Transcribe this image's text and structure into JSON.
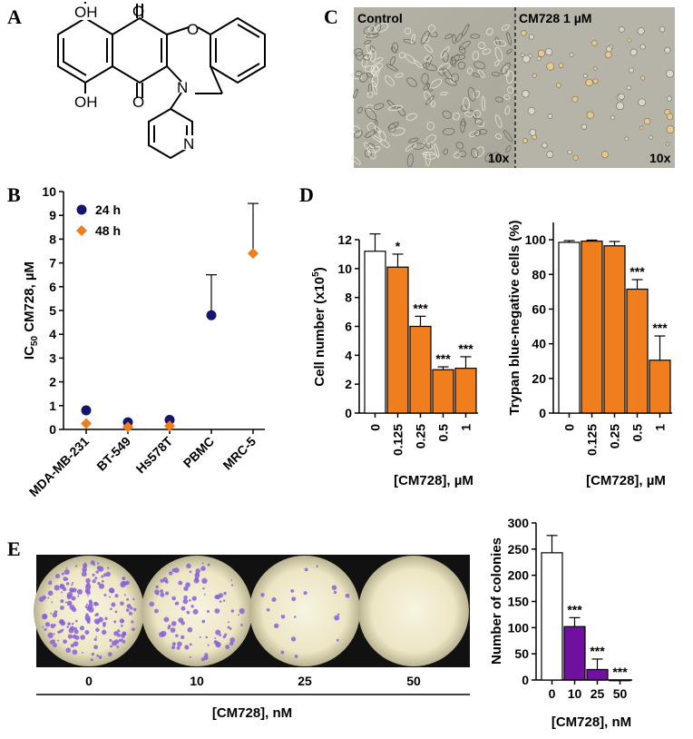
{
  "panels": {
    "A": "A",
    "B": "B",
    "C": "C",
    "D": "D",
    "E": "E"
  },
  "structure": {
    "atoms": {
      "oh_top": "OH",
      "oh_bottom": "OH",
      "o_top": "O",
      "o_bottom": "O",
      "o_ring": "O",
      "n_ring": "N",
      "n_pyridine": "N"
    }
  },
  "micrographs": {
    "left_label": "Control",
    "right_label": "CM728 1 µM",
    "left_mag": "10x",
    "right_mag": "10x"
  },
  "colony_images": {
    "doses": [
      "0",
      "10",
      "25",
      "50"
    ],
    "axis_label": "[CM728], nM"
  },
  "colors": {
    "navy": "#15166b",
    "orange": "#f07d1e",
    "purple": "#7010a0",
    "white": "#ffffff"
  },
  "chart_data": [
    {
      "id": "B",
      "type": "scatter",
      "categories": [
        "MDA-MB-231",
        "BT-549",
        "Hs578T",
        "PBMC",
        "MRC-5"
      ],
      "series": [
        {
          "name": "24 h",
          "marker": "circle",
          "color": "#15166b",
          "values": [
            0.8,
            0.3,
            0.4,
            4.8,
            null
          ],
          "errors": [
            0,
            0,
            0,
            1.7,
            null
          ]
        },
        {
          "name": "48 h",
          "marker": "diamond",
          "color": "#f07d1e",
          "values": [
            0.25,
            0.1,
            0.15,
            null,
            7.4
          ],
          "errors": [
            0,
            0,
            0,
            null,
            2.1
          ]
        }
      ],
      "ylabel_main": "IC",
      "ylabel_sub": "50",
      "ylabel_rest": " CM728, µM",
      "ylim": [
        0,
        10
      ],
      "yticks": [
        "0",
        "1",
        "2",
        "3",
        "4",
        "5",
        "6",
        "7",
        "8",
        "9",
        "10"
      ],
      "legend": "top-left"
    },
    {
      "id": "D1",
      "type": "bar",
      "categories": [
        "0",
        "0.125",
        "0.25",
        "0.5",
        "1"
      ],
      "values": [
        11.2,
        10.1,
        6.0,
        3.0,
        3.1
      ],
      "errors": [
        1.2,
        0.9,
        0.7,
        0.2,
        0.8
      ],
      "significance": [
        "",
        "*",
        "***",
        "***",
        "***"
      ],
      "colors": [
        "#ffffff",
        "#f07d1e",
        "#f07d1e",
        "#f07d1e",
        "#f07d1e"
      ],
      "ylabel_main": "Cell number (x10",
      "ylabel_sup": "5",
      "ylabel_rest": ")",
      "xlabel": "[CM728], µM",
      "ylim": [
        0,
        12
      ],
      "yticks": [
        "0",
        "2",
        "4",
        "6",
        "8",
        "10",
        "12"
      ]
    },
    {
      "id": "D2",
      "type": "bar",
      "categories": [
        "0",
        "0.125",
        "0.25",
        "0.5",
        "1"
      ],
      "values": [
        98.5,
        99.2,
        96.5,
        71.5,
        30.5
      ],
      "errors": [
        1.0,
        0.6,
        2.5,
        5.5,
        14.0
      ],
      "significance": [
        "",
        "",
        "",
        "***",
        "***"
      ],
      "colors": [
        "#ffffff",
        "#f07d1e",
        "#f07d1e",
        "#f07d1e",
        "#f07d1e"
      ],
      "ylabel": "Trypan blue-negative cells (%)",
      "xlabel": "[CM728], µM",
      "ylim": [
        0,
        110
      ],
      "yticks": [
        "0",
        "20",
        "40",
        "60",
        "80",
        "100"
      ]
    },
    {
      "id": "E",
      "type": "bar",
      "categories": [
        "0",
        "10",
        "25",
        "50"
      ],
      "values": [
        243,
        102,
        20,
        0
      ],
      "errors": [
        33,
        17,
        20,
        0
      ],
      "significance": [
        "",
        "***",
        "***",
        "***"
      ],
      "colors": [
        "#ffffff",
        "#7010a0",
        "#7010a0",
        "#7010a0"
      ],
      "ylabel": "Number of colonies",
      "xlabel": "[CM728], nM",
      "ylim": [
        0,
        300
      ],
      "yticks": [
        "0",
        "50",
        "100",
        "150",
        "200",
        "250",
        "300"
      ]
    }
  ]
}
